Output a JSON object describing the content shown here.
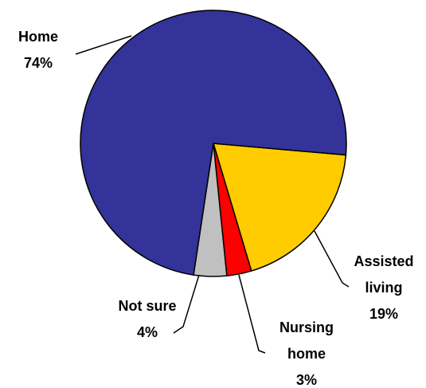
{
  "chart_data": {
    "type": "pie",
    "categories": [
      "Home",
      "Assisted living",
      "Nursing home",
      "Not sure"
    ],
    "values": [
      74,
      19,
      3,
      4
    ],
    "value_labels": [
      "74%",
      "19%",
      "3%",
      "4%"
    ],
    "colors": [
      "#333399",
      "#ffcc00",
      "#ff0000",
      "#c0c0c0"
    ]
  }
}
